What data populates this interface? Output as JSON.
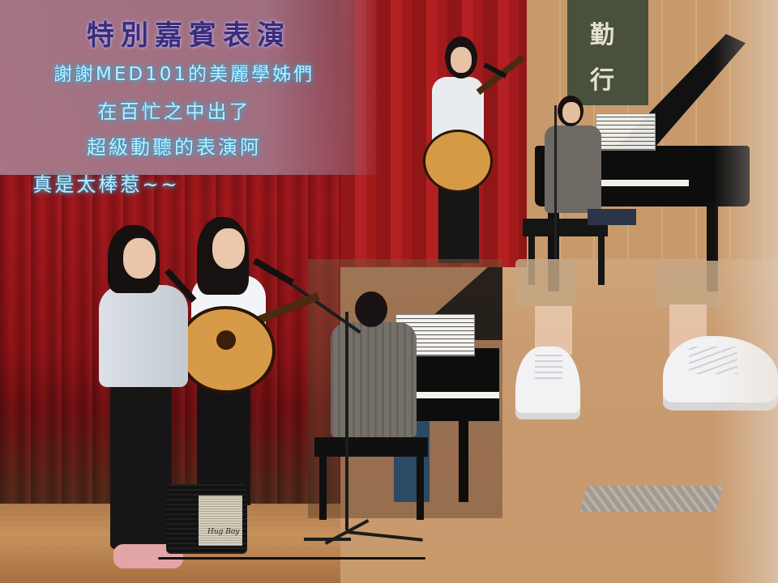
{
  "caption": {
    "title": "特別嘉賓表演",
    "lines": [
      "謝謝MED101的美麗學姊們",
      "在百忙之中出了",
      "超級動聽的表演阿",
      "真是太棒惹~~"
    ]
  },
  "scene": {
    "banner_text": [
      "勤",
      "行"
    ],
    "amp_label": "Hug Boy",
    "colors": {
      "curtain": "#9e161a",
      "stage_floor": "#c8925d",
      "caption_panel": "#a87c8c",
      "title_text": "#3a2d7a",
      "body_text_glow": "#3cbef0"
    }
  }
}
